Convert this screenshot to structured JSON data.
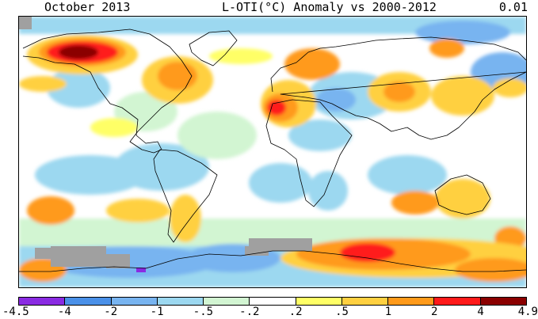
{
  "header": {
    "month": "October 2013",
    "title": "L-OTI(°C) Anomaly vs 2000-2012",
    "global_mean": "0.01"
  },
  "legend": {
    "bins": [
      {
        "from": "-4.5",
        "to": "-4",
        "color": "#8a2be2"
      },
      {
        "from": "-4",
        "to": "-2",
        "color": "#4a90e8"
      },
      {
        "from": "-2",
        "to": "-1",
        "color": "#78b4f0"
      },
      {
        "from": "-1",
        "to": "-.5",
        "color": "#9cd8f0"
      },
      {
        "from": "-.5",
        "to": "-.2",
        "color": "#d2f5d2"
      },
      {
        "from": "-.2",
        "to": ".2",
        "color": "#ffffff"
      },
      {
        "from": ".2",
        "to": ".5",
        "color": "#ffff66"
      },
      {
        "from": ".5",
        "to": "1",
        "color": "#ffd040"
      },
      {
        "from": "1",
        "to": "2",
        "color": "#ff9a1a"
      },
      {
        "from": "2",
        "to": "4",
        "color": "#ff1a1a"
      },
      {
        "from": "4",
        "to": "4.9",
        "color": "#8b0000"
      }
    ],
    "ticks": [
      "-4.5",
      "-4",
      "-2",
      "-1",
      "-.5",
      "-.2",
      ".2",
      ".5",
      "1",
      "2",
      "4",
      "4.9"
    ]
  },
  "map": {
    "missing_color": "#a0a0a0",
    "coast_color": "#000000"
  }
}
